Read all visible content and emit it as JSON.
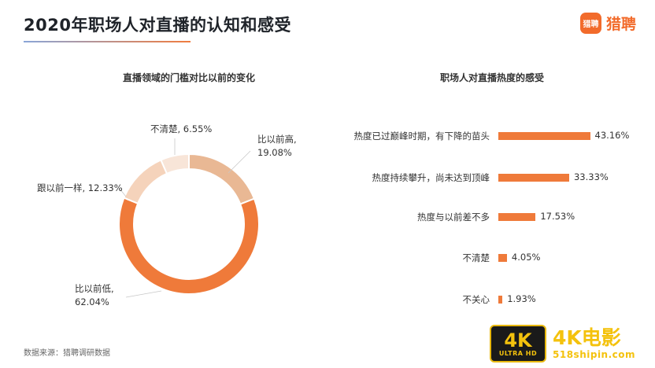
{
  "header": {
    "title": "2020年职场人对直播的认知和感受",
    "logo_mark": "猎聘",
    "logo_text": "猎聘"
  },
  "colors": {
    "accent": "#f07c3f",
    "bar": "#ef7a3a",
    "donut_segments": [
      "#e9b894",
      "#ef7a3a",
      "#f5d3bb",
      "#f8e5d8"
    ]
  },
  "chart_data": [
    {
      "type": "pie",
      "title": "直播领域的门槛对比以前的变化",
      "donut": true,
      "slices": [
        {
          "label": "比以前高",
          "value": 19.08,
          "display": "19.08%"
        },
        {
          "label": "比以前低",
          "value": 62.04,
          "display": "62.04%"
        },
        {
          "label": "跟以前一样",
          "value": 12.33,
          "display": "12.33%"
        },
        {
          "label": "不清楚",
          "value": 6.55,
          "display": "6.55%"
        }
      ]
    },
    {
      "type": "bar",
      "orientation": "horizontal",
      "title": "职场人对直播热度的感受",
      "categories": [
        "热度已过巅峰时期，有下降的苗头",
        "热度持续攀升，尚未达到顶峰",
        "热度与以前差不多",
        "不清楚",
        "不关心"
      ],
      "values": [
        43.16,
        33.33,
        17.53,
        4.05,
        1.93
      ],
      "value_labels": [
        "43.16%",
        "33.33%",
        "17.53%",
        "4.05%",
        "1.93%"
      ]
    }
  ],
  "pie_labels": {
    "high_line1": "比以前高,",
    "high_line2": "19.08%",
    "low_line1": "比以前低,",
    "low_line2": "62.04%",
    "same": "跟以前一样, 12.33%",
    "unclear": "不清楚, 6.55%"
  },
  "footer": {
    "source": "数据来源：猎聘调研数据"
  },
  "watermark": {
    "badge_big": "4K",
    "badge_small": "ULTRA HD",
    "brand": "4K电影",
    "site": "518shipin.com"
  }
}
